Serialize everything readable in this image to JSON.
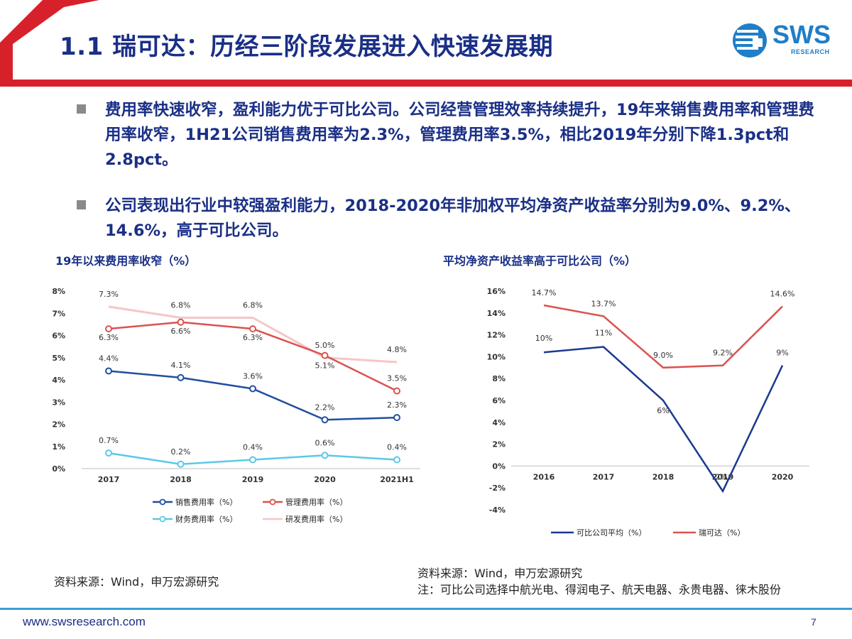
{
  "header": {
    "title": "1.1 瑞可达：历经三阶段发展进入快速发展期",
    "logo_text": "SWS",
    "logo_sub": "RESEARCH",
    "colors": {
      "red": "#d7212a",
      "title": "#1a2f86",
      "logo": "#1f7ec8"
    }
  },
  "bullets": [
    {
      "text": "费用率快速收窄，盈利能力优于可比公司。公司经营管理效率持续提升，19年来销售费用率和管理费用率收窄，1H21公司销售费用率为2.3%，管理费用率3.5%，相比2019年分别下降1.3pct和2.8pct。"
    },
    {
      "text": "公司表现出行业中较强盈利能力，2018-2020年非加权平均净资产收益率分别为9.0%、9.2%、14.6%，高于可比公司。"
    }
  ],
  "chart_titles": {
    "left": "19年以来费用率收窄（%）",
    "right": "平均净资产收益率高于可比公司（%）"
  },
  "chart_data": [
    {
      "type": "line",
      "title": "19年以来费用率收窄（%）",
      "categories": [
        "2017",
        "2018",
        "2019",
        "2020",
        "2021H1"
      ],
      "ylim": [
        0,
        8
      ],
      "yticks": [
        "0%",
        "1%",
        "2%",
        "3%",
        "4%",
        "5%",
        "6%",
        "7%",
        "8%"
      ],
      "series": [
        {
          "name": "销售费用率（%）",
          "values": [
            4.4,
            4.1,
            3.6,
            2.2,
            2.3
          ],
          "labels": [
            "4.4%",
            "4.1%",
            "3.6%",
            "2.2%",
            "2.3%"
          ],
          "color": "#1f4fa0",
          "marker": true
        },
        {
          "name": "管理费用率（%）",
          "values": [
            6.3,
            6.6,
            6.3,
            5.1,
            3.5
          ],
          "labels": [
            "6.3%",
            "6.6%",
            "6.3%",
            "5.1%",
            "3.5%"
          ],
          "color": "#d9534f",
          "marker": true
        },
        {
          "name": "财务费用率（%）",
          "values": [
            0.7,
            0.2,
            0.4,
            0.6,
            0.4
          ],
          "labels": [
            "0.7%",
            "0.2%",
            "0.4%",
            "0.6%",
            "0.4%"
          ],
          "color": "#5bc8e8",
          "marker": true
        },
        {
          "name": "研发费用率（%）",
          "values": [
            7.3,
            6.8,
            6.8,
            5.0,
            4.8
          ],
          "labels": [
            "7.3%",
            "6.8%",
            "6.8%",
            "5.0%",
            "4.8%"
          ],
          "color": "#f6c6c6",
          "marker": false
        }
      ],
      "legend": "bottom"
    },
    {
      "type": "line",
      "title": "平均净资产收益率高于可比公司（%）",
      "categories": [
        "2016",
        "2017",
        "2018",
        "2019",
        "2020"
      ],
      "ylim": [
        -4,
        16
      ],
      "yticks": [
        "-4%",
        "-2%",
        "0%",
        "2%",
        "4%",
        "6%",
        "8%",
        "10%",
        "12%",
        "14%",
        "16%"
      ],
      "series": [
        {
          "name": "可比公司平均（%）",
          "values": [
            10.4,
            10.9,
            6.0,
            -2.3,
            9.2
          ],
          "labels": [
            "10%",
            "11%",
            "6%",
            "-2%",
            "9%"
          ],
          "color": "#1a3a8f"
        },
        {
          "name": "瑞可达（%）",
          "values": [
            14.7,
            13.7,
            9.0,
            9.2,
            14.6
          ],
          "labels": [
            "14.7%",
            "13.7%",
            "9.0%",
            "9.2%",
            "14.6%"
          ],
          "color": "#d9534f"
        }
      ],
      "legend": "bottom"
    }
  ],
  "sources": {
    "left": "资料来源：Wind，申万宏源研究",
    "right_line1": "资料来源：Wind，申万宏源研究",
    "right_line2": "注：可比公司选择中航光电、得润电子、航天电器、永贵电器、徕木股份"
  },
  "footer": {
    "url": "www.swsresearch.com",
    "page": "7",
    "line_color": "#3a9fd6"
  }
}
